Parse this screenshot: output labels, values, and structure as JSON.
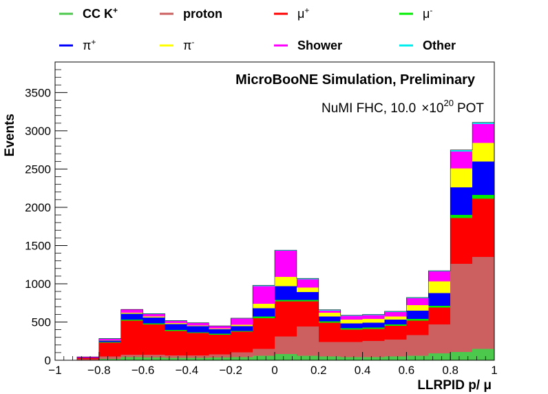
{
  "chart_data": {
    "type": "bar",
    "stacked": true,
    "title": "MicroBooNE Simulation, Preliminary",
    "subtitle": {
      "prefix": "NuMI FHC, 10.0",
      "times": "×10",
      "exp": "20",
      "unit": "POT"
    },
    "xlabel": "LLRPID p/ μ",
    "ylabel": "Events",
    "xlim": [
      -1,
      1
    ],
    "ylim": [
      0,
      3900
    ],
    "x_ticks": [
      "−1",
      "−0.8",
      "−0.6",
      "−0.4",
      "−0.2",
      "0",
      "0.2",
      "0.4",
      "0.6",
      "0.8",
      "1"
    ],
    "y_ticks": [
      "0",
      "500",
      "1000",
      "1500",
      "2000",
      "2500",
      "3000",
      "3500"
    ],
    "grid": false,
    "legend_position": "top",
    "bin_edges": [
      -1.0,
      -0.9,
      -0.8,
      -0.7,
      -0.6,
      -0.5,
      -0.4,
      -0.3,
      -0.2,
      -0.1,
      0.0,
      0.1,
      0.2,
      0.3,
      0.4,
      0.5,
      0.6,
      0.7,
      0.8,
      0.9,
      1.0
    ],
    "series": [
      {
        "name": "CC K",
        "sup": "+",
        "bold": true,
        "color": "#4cc94c",
        "values": [
          0,
          5,
          20,
          40,
          35,
          30,
          30,
          35,
          40,
          60,
          80,
          60,
          50,
          40,
          40,
          50,
          60,
          90,
          110,
          150
        ]
      },
      {
        "name": "proton",
        "sup": "",
        "bold": true,
        "color": "#cc5f5f",
        "values": [
          0,
          10,
          30,
          30,
          35,
          35,
          35,
          40,
          65,
          90,
          230,
          380,
          190,
          200,
          210,
          220,
          270,
          380,
          1150,
          1200
        ]
      },
      {
        "name": "μ",
        "sup": "+",
        "bold": false,
        "color": "#ff0000",
        "values": [
          0,
          15,
          180,
          450,
          400,
          320,
          290,
          260,
          270,
          400,
          460,
          330,
          250,
          160,
          160,
          180,
          190,
          220,
          600,
          760
        ]
      },
      {
        "name": "μ",
        "sup": "-",
        "bold": false,
        "color": "#00ee00",
        "values": [
          0,
          0,
          10,
          10,
          10,
          10,
          10,
          10,
          10,
          20,
          20,
          20,
          20,
          20,
          20,
          20,
          20,
          20,
          40,
          50
        ]
      },
      {
        "name": "π",
        "sup": "+",
        "bold": false,
        "color": "#0000ff",
        "values": [
          0,
          5,
          15,
          80,
          80,
          80,
          80,
          60,
          60,
          110,
          180,
          100,
          60,
          60,
          60,
          60,
          110,
          170,
          360,
          440
        ]
      },
      {
        "name": "π",
        "sup": "-",
        "bold": false,
        "color": "#ffff00",
        "values": [
          0,
          0,
          5,
          10,
          10,
          10,
          10,
          10,
          20,
          60,
          120,
          60,
          50,
          50,
          50,
          40,
          70,
          150,
          250,
          240
        ]
      },
      {
        "name": "Shower",
        "sup": "",
        "bold": true,
        "color": "#ff00ff",
        "values": [
          0,
          10,
          20,
          40,
          35,
          30,
          30,
          30,
          80,
          230,
          340,
          110,
          30,
          50,
          50,
          60,
          90,
          130,
          220,
          250
        ]
      },
      {
        "name": "Other",
        "sup": "",
        "bold": true,
        "color": "#00eeee",
        "values": [
          0,
          0,
          5,
          5,
          5,
          5,
          5,
          5,
          5,
          10,
          10,
          10,
          10,
          10,
          10,
          10,
          10,
          10,
          20,
          20
        ]
      }
    ]
  }
}
